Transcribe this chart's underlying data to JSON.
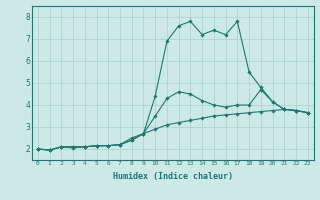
{
  "xlabel": "Humidex (Indice chaleur)",
  "x_values": [
    0,
    1,
    2,
    3,
    4,
    5,
    6,
    7,
    8,
    9,
    10,
    11,
    12,
    13,
    14,
    15,
    16,
    17,
    18,
    19,
    20,
    21,
    22,
    23
  ],
  "line1": [
    2.0,
    1.95,
    2.1,
    2.1,
    2.1,
    2.15,
    2.15,
    2.2,
    2.4,
    2.7,
    4.4,
    6.9,
    7.6,
    7.8,
    7.2,
    7.4,
    7.2,
    7.8,
    5.5,
    4.8,
    4.15,
    3.8,
    3.75,
    3.65
  ],
  "line2": [
    2.0,
    1.95,
    2.1,
    2.1,
    2.1,
    2.15,
    2.15,
    2.2,
    2.4,
    2.7,
    3.5,
    4.3,
    4.6,
    4.5,
    4.2,
    4.0,
    3.9,
    4.0,
    4.0,
    4.7,
    4.15,
    3.8,
    3.75,
    3.65
  ],
  "line3": [
    2.0,
    1.95,
    2.1,
    2.05,
    2.1,
    2.15,
    2.15,
    2.2,
    2.5,
    2.7,
    2.9,
    3.1,
    3.2,
    3.3,
    3.4,
    3.5,
    3.55,
    3.6,
    3.65,
    3.7,
    3.75,
    3.8,
    3.75,
    3.65
  ],
  "line_color": "#1a7a6e",
  "bg_color": "#cce9e7",
  "grid_color": "#aed4d2",
  "ylim": [
    1.5,
    8.5
  ],
  "xlim": [
    -0.5,
    23.5
  ],
  "yticks": [
    2,
    3,
    4,
    5,
    6,
    7,
    8
  ],
  "xticks": [
    0,
    1,
    2,
    3,
    4,
    5,
    6,
    7,
    8,
    9,
    10,
    11,
    12,
    13,
    14,
    15,
    16,
    17,
    18,
    19,
    20,
    21,
    22,
    23
  ]
}
